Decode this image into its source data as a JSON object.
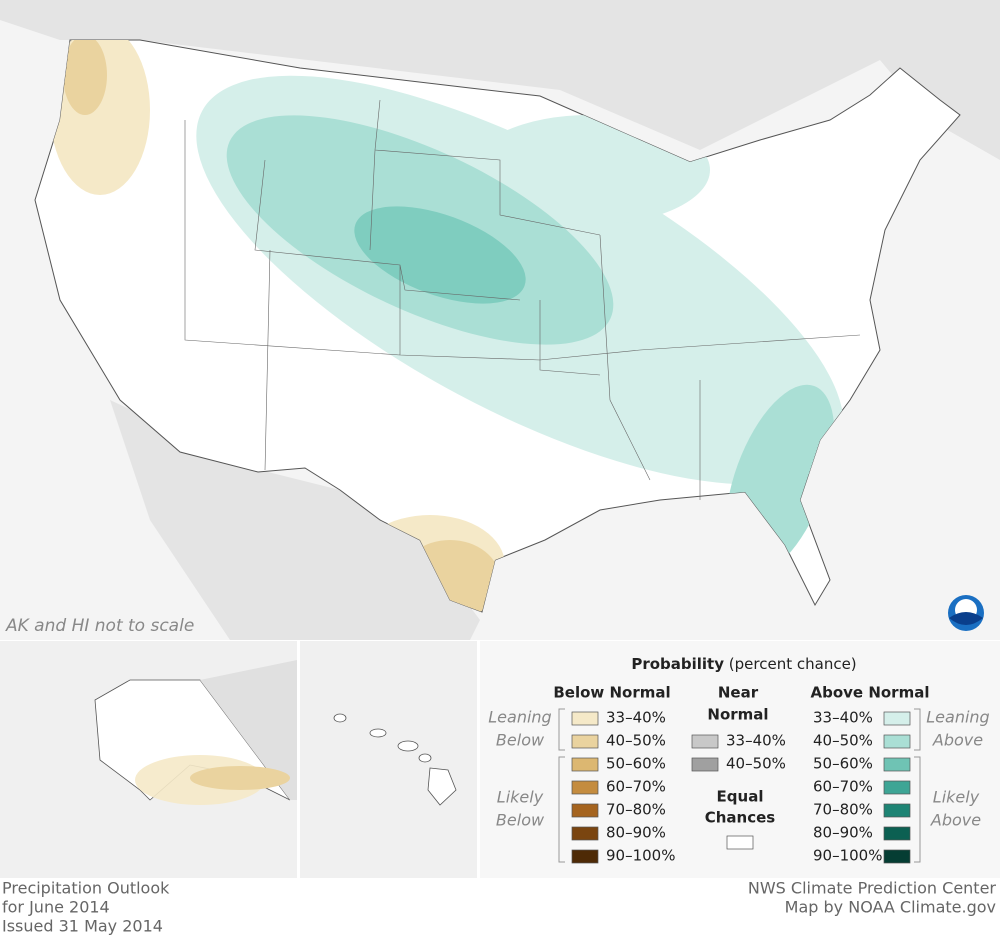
{
  "map": {
    "note": "AK and HI not to scale"
  },
  "legend": {
    "title": "Probability",
    "subtitle": "(percent chance)",
    "below": {
      "heading": "Below Normal",
      "leaning": [
        "Leaning",
        "Below"
      ],
      "likely": [
        "Likely",
        "Below"
      ],
      "items": [
        {
          "label": "33–40%",
          "color": "#f5e9c8"
        },
        {
          "label": "40–50%",
          "color": "#ead39f"
        },
        {
          "label": "50–60%",
          "color": "#dcb771"
        },
        {
          "label": "60–70%",
          "color": "#c48c3f"
        },
        {
          "label": "70–80%",
          "color": "#a5641f"
        },
        {
          "label": "80–90%",
          "color": "#7a4510"
        },
        {
          "label": "90–100%",
          "color": "#4e2a06"
        }
      ]
    },
    "near": {
      "heading": [
        "Near",
        "Normal"
      ],
      "equal": [
        "Equal",
        "Chances"
      ],
      "equal_color": "#ffffff",
      "items": [
        {
          "label": "33–40%",
          "color": "#c8c8c8"
        },
        {
          "label": "40–50%",
          "color": "#a0a0a0"
        }
      ]
    },
    "above": {
      "heading": "Above Normal",
      "leaning": [
        "Leaning",
        "Above"
      ],
      "likely": [
        "Likely",
        "Above"
      ],
      "items": [
        {
          "label": "33–40%",
          "color": "#d5efea"
        },
        {
          "label": "40–50%",
          "color": "#aadfd5"
        },
        {
          "label": "50–60%",
          "color": "#6fc3b4"
        },
        {
          "label": "60–70%",
          "color": "#3ea595"
        },
        {
          "label": "70–80%",
          "color": "#1e8474"
        },
        {
          "label": "80–90%",
          "color": "#0c6052"
        },
        {
          "label": "90–100%",
          "color": "#053d33"
        }
      ]
    }
  },
  "footer": {
    "left": [
      "Precipitation Outlook",
      "for June 2014",
      "Issued 31 May 2014"
    ],
    "right": [
      "NWS Climate Prediction Center",
      "Map by NOAA Climate.gov"
    ]
  }
}
